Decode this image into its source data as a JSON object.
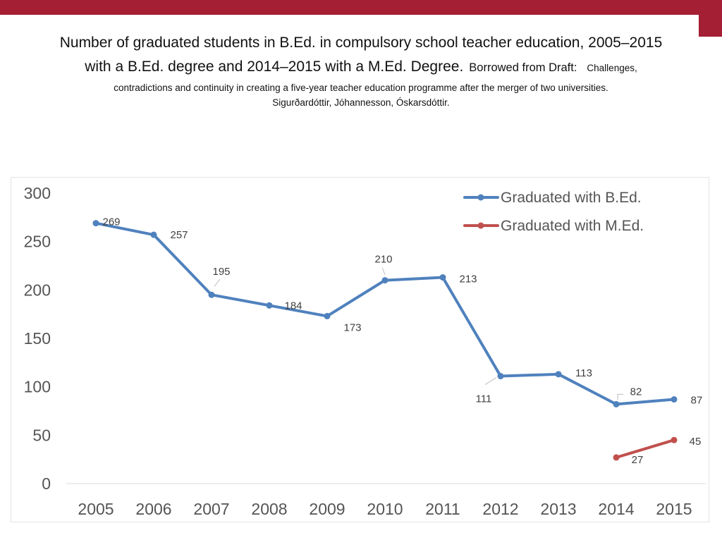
{
  "title": {
    "line1": "Number of graduated students in B.Ed. in compulsory school teacher education, 2005–2015",
    "line2_main": "with a B.Ed. degree and 2014–2015 with a M.Ed. Degree.",
    "line2_borrowed": "Borrowed from Draft:",
    "line2_challenges": "Challenges,",
    "line3": "contradictions and continuity in creating a five-year teacher education programme after the merger of two universities.",
    "line4": "Sigurðardóttir, Jóhannesson, Óskarsdóttir."
  },
  "colors": {
    "brand": "#a41e34",
    "bed": "#4f81bd",
    "med": "#c0504d"
  },
  "chart_data": {
    "type": "line",
    "title": "",
    "xlabel": "",
    "ylabel": "",
    "categories": [
      "2005",
      "2006",
      "2007",
      "2008",
      "2009",
      "2010",
      "2011",
      "2012",
      "2013",
      "2014",
      "2015"
    ],
    "ylim": [
      0,
      300
    ],
    "yticks": [
      "0",
      "50",
      "100",
      "150",
      "200",
      "250",
      "300"
    ],
    "grid": false,
    "legend_position": "top-right",
    "series": [
      {
        "name": "Graduated with B.Ed.",
        "color": "#4f81bd",
        "values": [
          269,
          257,
          195,
          184,
          173,
          210,
          213,
          111,
          113,
          82,
          87
        ],
        "labels": [
          "269",
          "257",
          "195",
          "184",
          "173",
          "210",
          "213",
          "111",
          "113",
          "82",
          "87"
        ]
      },
      {
        "name": "Graduated with  M.Ed.",
        "color": "#c0504d",
        "values": [
          null,
          null,
          null,
          null,
          null,
          null,
          null,
          null,
          null,
          27,
          45
        ],
        "labels": [
          "",
          "",
          "",
          "",
          "",
          "",
          "",
          "",
          "",
          "27",
          "45"
        ]
      }
    ]
  }
}
